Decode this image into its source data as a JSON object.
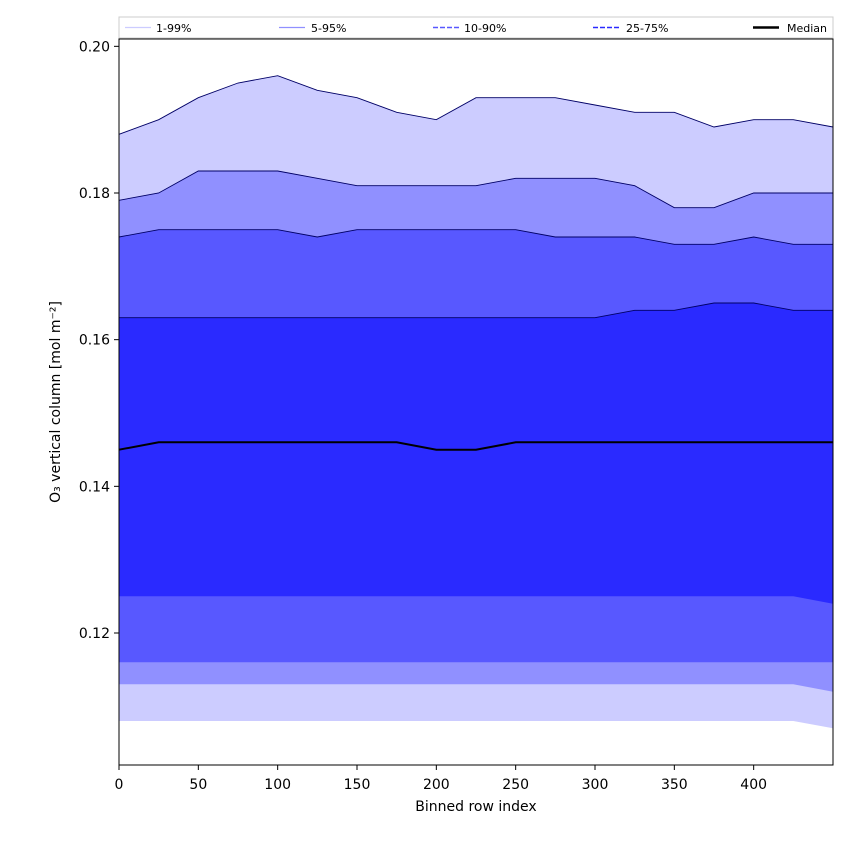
{
  "chart_data": {
    "type": "area",
    "xlabel": "Binned row index",
    "ylabel": "O₃ vertical column [mol m⁻²]",
    "xlim": [
      0,
      450
    ],
    "ylim": [
      0.102,
      0.201
    ],
    "x_ticks": [
      0,
      50,
      100,
      150,
      200,
      250,
      300,
      350,
      400
    ],
    "y_ticks": [
      0.12,
      0.14,
      0.16,
      0.18,
      0.2
    ],
    "x_tick_labels": [
      "0",
      "50",
      "100",
      "150",
      "200",
      "250",
      "300",
      "350",
      "400"
    ],
    "y_tick_labels": [
      "0.12",
      "0.14",
      "0.16",
      "0.18",
      "0.20"
    ],
    "grid": false,
    "legend_position": "top (above plot, single row)",
    "x": [
      0,
      25,
      50,
      75,
      100,
      125,
      150,
      175,
      200,
      225,
      250,
      275,
      300,
      325,
      350,
      375,
      400,
      425,
      450
    ],
    "bands": [
      {
        "name": "1-99%",
        "color": "#ccccff",
        "upper": [
          0.188,
          0.19,
          0.193,
          0.195,
          0.196,
          0.194,
          0.193,
          0.191,
          0.19,
          0.193,
          0.193,
          0.193,
          0.192,
          0.191,
          0.191,
          0.189,
          0.19,
          0.19,
          0.189
        ],
        "lower": [
          0.108,
          0.108,
          0.108,
          0.108,
          0.108,
          0.108,
          0.108,
          0.108,
          0.108,
          0.108,
          0.108,
          0.108,
          0.108,
          0.108,
          0.108,
          0.108,
          0.108,
          0.108,
          0.107
        ]
      },
      {
        "name": "5-95%",
        "color": "#9090ff",
        "upper": [
          0.179,
          0.18,
          0.183,
          0.183,
          0.183,
          0.182,
          0.181,
          0.181,
          0.181,
          0.181,
          0.182,
          0.182,
          0.182,
          0.181,
          0.178,
          0.178,
          0.18,
          0.18,
          0.18
        ],
        "lower": [
          0.113,
          0.113,
          0.113,
          0.113,
          0.113,
          0.113,
          0.113,
          0.113,
          0.113,
          0.113,
          0.113,
          0.113,
          0.113,
          0.113,
          0.113,
          0.113,
          0.113,
          0.113,
          0.112
        ]
      },
      {
        "name": "10-90%",
        "color": "#5858ff",
        "upper": [
          0.174,
          0.175,
          0.175,
          0.175,
          0.175,
          0.174,
          0.175,
          0.175,
          0.175,
          0.175,
          0.175,
          0.174,
          0.174,
          0.174,
          0.173,
          0.173,
          0.174,
          0.173,
          0.173
        ],
        "lower": [
          0.116,
          0.116,
          0.116,
          0.116,
          0.116,
          0.116,
          0.116,
          0.116,
          0.116,
          0.116,
          0.116,
          0.116,
          0.116,
          0.116,
          0.116,
          0.116,
          0.116,
          0.116,
          0.116
        ]
      },
      {
        "name": "25-75%",
        "color": "#2a2aff",
        "upper": [
          0.163,
          0.163,
          0.163,
          0.163,
          0.163,
          0.163,
          0.163,
          0.163,
          0.163,
          0.163,
          0.163,
          0.163,
          0.163,
          0.164,
          0.164,
          0.165,
          0.165,
          0.164,
          0.164
        ],
        "lower": [
          0.125,
          0.125,
          0.125,
          0.125,
          0.125,
          0.125,
          0.125,
          0.125,
          0.125,
          0.125,
          0.125,
          0.125,
          0.125,
          0.125,
          0.125,
          0.125,
          0.125,
          0.125,
          0.124
        ]
      }
    ],
    "median": {
      "name": "Median",
      "color": "#000000",
      "values": [
        0.145,
        0.146,
        0.146,
        0.146,
        0.146,
        0.146,
        0.146,
        0.146,
        0.145,
        0.145,
        0.146,
        0.146,
        0.146,
        0.146,
        0.146,
        0.146,
        0.146,
        0.146,
        0.146
      ]
    },
    "legend": [
      {
        "label": "1-99%",
        "color": "#ccccff",
        "style": "solid"
      },
      {
        "label": "5-95%",
        "color": "#9090ff",
        "style": "solid"
      },
      {
        "label": "10-90%",
        "color": "#5858ff",
        "style": "dashed"
      },
      {
        "label": "25-75%",
        "color": "#2a2aff",
        "style": "dashed"
      },
      {
        "label": "Median",
        "color": "#000000",
        "style": "solid-thick"
      }
    ]
  }
}
